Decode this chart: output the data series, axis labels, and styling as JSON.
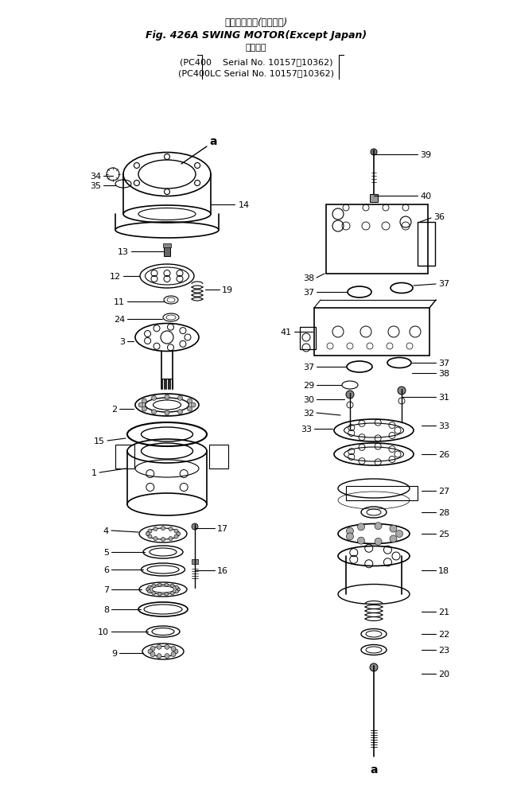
{
  "title_line1": "旋　回モータ(海　外向)",
  "title_line2": "Fig. 426A SWING MOTOR(Except Japan)",
  "title_line3": "適用号機",
  "title_line4": "(PC400    Serial No. 10157～10362)",
  "title_line5": "(PC400LC Serial No. 10157～10362)",
  "bg_color": "#ffffff",
  "line_color": "#000000",
  "fig_width": 6.45,
  "fig_height": 10.03
}
